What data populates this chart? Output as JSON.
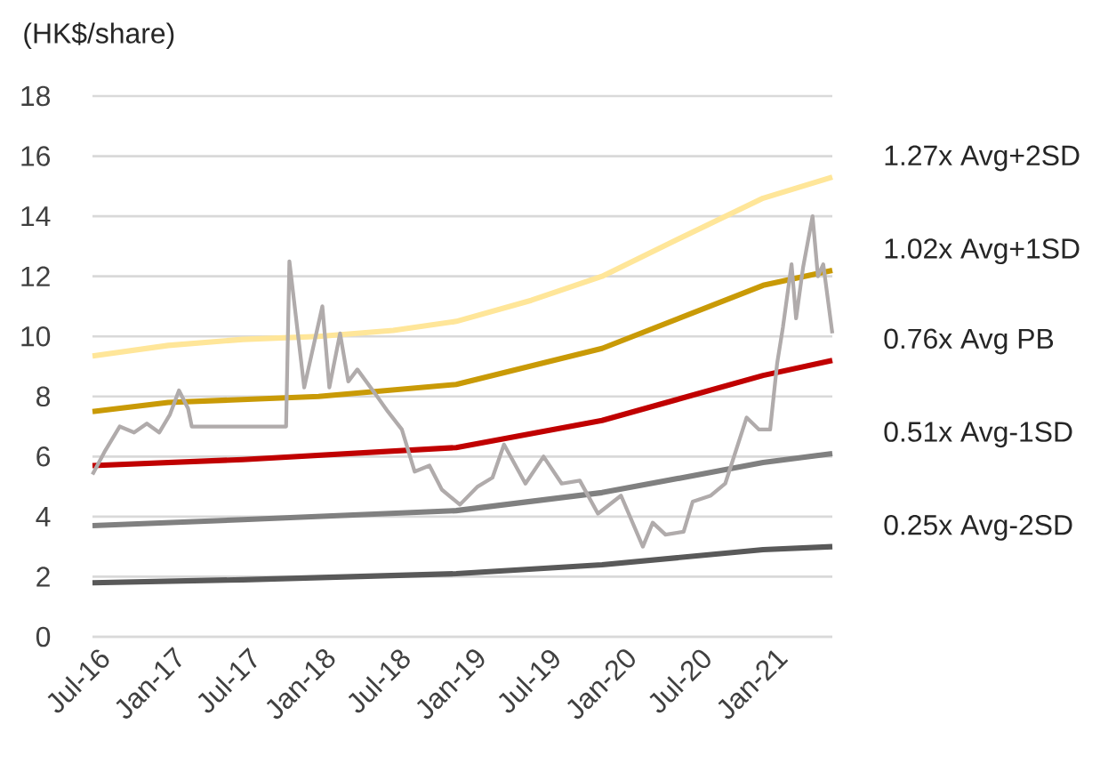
{
  "chart_data": {
    "type": "line",
    "ylabel": "(HK$/share)",
    "xlim": [
      "2016-07-01",
      "2021-06-01"
    ],
    "xticks": [
      {
        "value": "2016-07-01",
        "label": "Jul-16"
      },
      {
        "value": "2017-01-01",
        "label": "Jan-17"
      },
      {
        "value": "2017-07-01",
        "label": "Jul-17"
      },
      {
        "value": "2018-01-01",
        "label": "Jan-18"
      },
      {
        "value": "2018-07-01",
        "label": "Jul-18"
      },
      {
        "value": "2019-01-01",
        "label": "Jan-19"
      },
      {
        "value": "2019-07-01",
        "label": "Jul-19"
      },
      {
        "value": "2020-01-01",
        "label": "Jan-20"
      },
      {
        "value": "2020-07-01",
        "label": "Jul-20"
      },
      {
        "value": "2021-01-01",
        "label": "Jan-21"
      }
    ],
    "ylim": [
      0,
      18
    ],
    "yticks": [
      0,
      2,
      4,
      6,
      8,
      10,
      12,
      14,
      16,
      18
    ],
    "grid": "y",
    "marker": "none",
    "line_style": "solid",
    "series": [
      {
        "name": "1.27x Avg+2SD",
        "color": "#ffe699",
        "x": [
          "2016-07-01",
          "2017-01-01",
          "2017-07-01",
          "2018-01-01",
          "2018-07-01",
          "2018-12-01",
          "2019-06-01",
          "2019-11-20",
          "2020-06-01",
          "2020-12-15",
          "2021-06-01"
        ],
        "values": [
          9.35,
          9.7,
          9.9,
          10.0,
          10.2,
          10.5,
          11.2,
          12.0,
          13.3,
          14.6,
          15.3
        ]
      },
      {
        "name": "1.02x Avg+1SD",
        "color": "#c99a06",
        "x": [
          "2016-07-01",
          "2017-01-01",
          "2018-01-01",
          "2018-12-01",
          "2019-11-20",
          "2020-12-15",
          "2021-06-01"
        ],
        "values": [
          7.5,
          7.8,
          8.0,
          8.4,
          9.6,
          11.7,
          12.2
        ]
      },
      {
        "name": "0.76x Avg PB",
        "color": "#c00000",
        "x": [
          "2016-07-01",
          "2017-07-01",
          "2018-12-01",
          "2019-11-20",
          "2020-12-15",
          "2021-06-01"
        ],
        "values": [
          5.7,
          5.9,
          6.3,
          7.2,
          8.7,
          9.2
        ]
      },
      {
        "name": "0.51x Avg-1SD",
        "color": "#808080",
        "x": [
          "2016-07-01",
          "2017-07-01",
          "2018-12-01",
          "2019-11-20",
          "2020-12-15",
          "2021-06-01"
        ],
        "values": [
          3.7,
          3.9,
          4.2,
          4.8,
          5.8,
          6.1
        ]
      },
      {
        "name": "0.25x Avg-2SD",
        "color": "#595959",
        "x": [
          "2016-07-01",
          "2017-07-01",
          "2018-12-01",
          "2019-11-20",
          "2020-12-15",
          "2021-06-01"
        ],
        "values": [
          1.8,
          1.9,
          2.1,
          2.4,
          2.9,
          3.0
        ]
      },
      {
        "color": "#b0abab",
        "x": [
          "2016-07-01",
          "2016-08-01",
          "2016-09-05",
          "2016-10-10",
          "2016-11-10",
          "2016-12-10",
          "2017-01-05",
          "2017-01-27",
          "2017-02-18",
          "2017-02-27",
          "2017-10-14",
          "2017-10-22",
          "2017-11-27",
          "2018-01-10",
          "2018-01-27",
          "2018-02-22",
          "2018-03-14",
          "2018-04-05",
          "2018-05-18",
          "2018-06-18",
          "2018-07-22",
          "2018-08-22",
          "2018-09-27",
          "2018-10-27",
          "2018-12-10",
          "2019-01-22",
          "2019-02-27",
          "2019-03-27",
          "2019-05-18",
          "2019-07-01",
          "2019-08-14",
          "2019-09-27",
          "2019-11-10",
          "2020-01-05",
          "2020-02-27",
          "2020-03-22",
          "2020-04-22",
          "2020-06-05",
          "2020-06-27",
          "2020-08-10",
          "2020-09-14",
          "2020-11-05",
          "2020-12-05",
          "2021-01-01",
          "2021-01-18",
          "2021-02-01",
          "2021-02-22",
          "2021-03-05",
          "2021-03-22",
          "2021-04-14",
          "2021-04-27",
          "2021-05-10",
          "2021-06-01"
        ],
        "values": [
          5.4,
          6.2,
          7.0,
          6.8,
          7.1,
          6.8,
          7.4,
          8.2,
          7.6,
          7.0,
          7.0,
          12.5,
          8.3,
          11.0,
          8.3,
          10.1,
          8.5,
          8.9,
          8.1,
          7.5,
          6.9,
          5.5,
          5.7,
          4.9,
          4.4,
          5.0,
          5.3,
          6.4,
          5.1,
          6.0,
          5.1,
          5.2,
          4.1,
          4.7,
          3.0,
          3.8,
          3.4,
          3.5,
          4.5,
          4.7,
          5.1,
          7.3,
          6.9,
          6.9,
          9.1,
          10.3,
          12.4,
          10.6,
          12.3,
          14.0,
          12.0,
          12.4,
          10.1
        ]
      }
    ]
  }
}
